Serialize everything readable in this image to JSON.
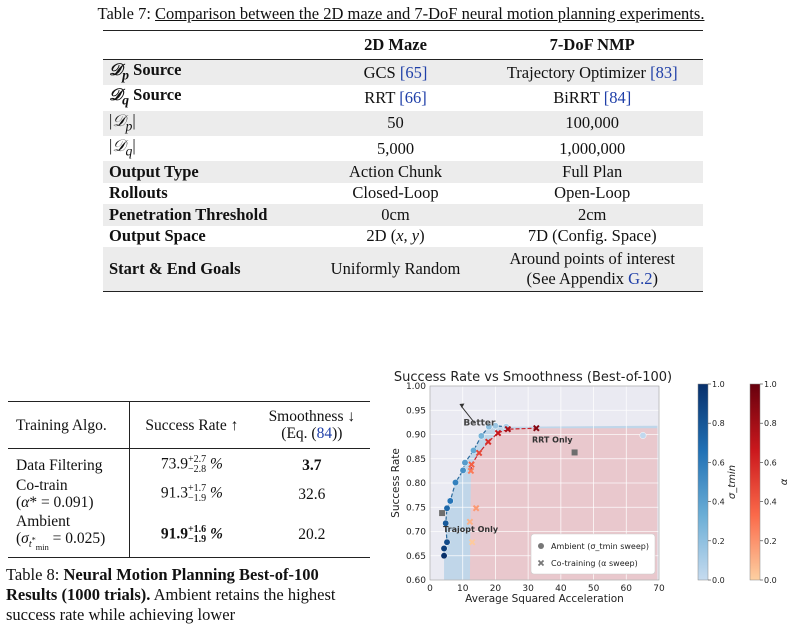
{
  "table7": {
    "caption_label": "Table 7:",
    "caption_text": "Comparison between the 2D maze and 7-DoF neural motion planning experiments.",
    "headers": [
      "",
      "2D Maze",
      "7-DoF NMP"
    ],
    "rows": [
      {
        "label": "𝒟_p Source",
        "maze": "GCS",
        "maze_cite": "[65]",
        "nmp": "Trajectory Optimizer",
        "nmp_cite": "[83]"
      },
      {
        "label": "𝒟_q Source",
        "maze": "RRT",
        "maze_cite": "[66]",
        "nmp": "BiRRT",
        "nmp_cite": "[84]"
      },
      {
        "label": "|𝒟_p|",
        "maze": "50",
        "nmp": "100,000"
      },
      {
        "label": "|𝒟_q|",
        "maze": "5,000",
        "nmp": "1,000,000"
      },
      {
        "label": "Output Type",
        "maze": "Action Chunk",
        "nmp": "Full Plan"
      },
      {
        "label": "Rollouts",
        "maze": "Closed-Loop",
        "nmp": "Open-Loop"
      },
      {
        "label": "Penetration Threshold",
        "maze": "0cm",
        "nmp": "2cm"
      },
      {
        "label": "Output Space",
        "maze": "2D (x, y)",
        "nmp": "7D (Config. Space)"
      },
      {
        "label": "Start & End Goals",
        "maze": "Uniformly Random",
        "nmp_line1": "Around points of interest",
        "nmp_line2_pre": "(See Appendix ",
        "nmp_line2_link": "G.2",
        "nmp_line2_post": ")"
      }
    ]
  },
  "table8": {
    "headers": {
      "algo": "Training Algo.",
      "success": "Success Rate ↑",
      "smooth_line1": "Smoothness ↓",
      "smooth_line2_pre": "(Eq. (",
      "smooth_line2_link": "84",
      "smooth_line2_post": "))"
    },
    "rows": [
      {
        "algo": "Data Filtering",
        "algo_sub": "",
        "rate": "73.9",
        "plus": "+2.7",
        "minus": "−2.8",
        "pct": "%",
        "smooth": "3.7",
        "bold_smooth": true,
        "bold_rate": false
      },
      {
        "algo": "Co-train",
        "algo_sub": "(α* = 0.091)",
        "rate": "91.3",
        "plus": "+1.7",
        "minus": "−1.9",
        "pct": "%",
        "smooth": "32.6",
        "bold_smooth": false,
        "bold_rate": false
      },
      {
        "algo": "Ambient",
        "algo_sub": "(σ_tmin* = 0.025)",
        "rate": "91.9",
        "plus": "+1.6",
        "minus": "−1.9",
        "pct": "%",
        "smooth": "20.2",
        "bold_smooth": false,
        "bold_rate": true
      }
    ],
    "caption_label": "Table 8:",
    "caption_bold": "Neural Motion Planning Best-of-100 Results (1000 trials).",
    "caption_text": "Ambient retains the highest success rate while achieving lower"
  },
  "chart_data": {
    "type": "scatter",
    "title": "Success Rate vs Smoothness (Best-of-100)",
    "xlabel": "Average Squared Acceleration",
    "ylabel": "Success Rate",
    "xlim": [
      0,
      70
    ],
    "ylim": [
      0.6,
      1.0
    ],
    "xticks": [
      "0",
      "10",
      "20",
      "30",
      "40",
      "50",
      "60",
      "70"
    ],
    "yticks": [
      "0.60",
      "0.65",
      "0.70",
      "0.75",
      "0.80",
      "0.85",
      "0.90",
      "0.95",
      "1.00"
    ],
    "series": [
      {
        "name": "Ambient (σ_tmin sweep)",
        "marker": "circle",
        "points": [
          [
            4.3,
            0.65
          ],
          [
            4.3,
            0.665
          ],
          [
            5.2,
            0.678
          ],
          [
            4.8,
            0.717
          ],
          [
            5.2,
            0.748
          ],
          [
            6.2,
            0.763
          ],
          [
            7.8,
            0.801
          ],
          [
            10.1,
            0.826
          ],
          [
            10.7,
            0.842
          ],
          [
            13.3,
            0.867
          ],
          [
            15.7,
            0.897
          ],
          [
            18.0,
            0.916
          ],
          [
            20.0,
            0.918
          ],
          [
            23.3,
            0.916
          ],
          [
            65.1,
            0.898
          ]
        ],
        "shade": [
          0.0,
          0.07,
          0.14,
          0.21,
          0.28,
          0.35,
          0.42,
          0.5,
          0.57,
          0.64,
          0.71,
          0.78,
          0.85,
          0.92,
          0.98
        ]
      },
      {
        "name": "Co-training (α sweep)",
        "marker": "x",
        "points": [
          [
            12.9,
            0.678
          ],
          [
            12.2,
            0.72
          ],
          [
            14.1,
            0.748
          ],
          [
            12.5,
            0.825
          ],
          [
            12.7,
            0.838
          ],
          [
            15.0,
            0.862
          ],
          [
            17.8,
            0.885
          ],
          [
            20.8,
            0.903
          ],
          [
            23.8,
            0.911
          ],
          [
            32.5,
            0.913
          ]
        ],
        "shade": [
          0.98,
          0.9,
          0.82,
          0.72,
          0.62,
          0.52,
          0.42,
          0.32,
          0.22,
          0.1
        ]
      }
    ],
    "references": [
      {
        "label": "RRT Only",
        "x": 44.2,
        "y": 0.863
      },
      {
        "label": "Trajopt Only",
        "x": 3.7,
        "y": 0.738
      }
    ],
    "annotation": "Better",
    "colorbars": [
      {
        "label": "σ_tmin",
        "ticks": [
          "0.0",
          "0.2",
          "0.4",
          "0.6",
          "0.8",
          "1.0"
        ],
        "cmap": "blues"
      },
      {
        "label": "α",
        "ticks": [
          "0.0",
          "0.2",
          "0.4",
          "0.6",
          "0.8",
          "1.0"
        ],
        "cmap": "reds"
      }
    ],
    "colors": {
      "ambient_region": "#b9d2e8",
      "cotrain_region": "#f2c4c6",
      "grid": "#ffffff",
      "plot_bg": "#eaeaf2"
    }
  }
}
